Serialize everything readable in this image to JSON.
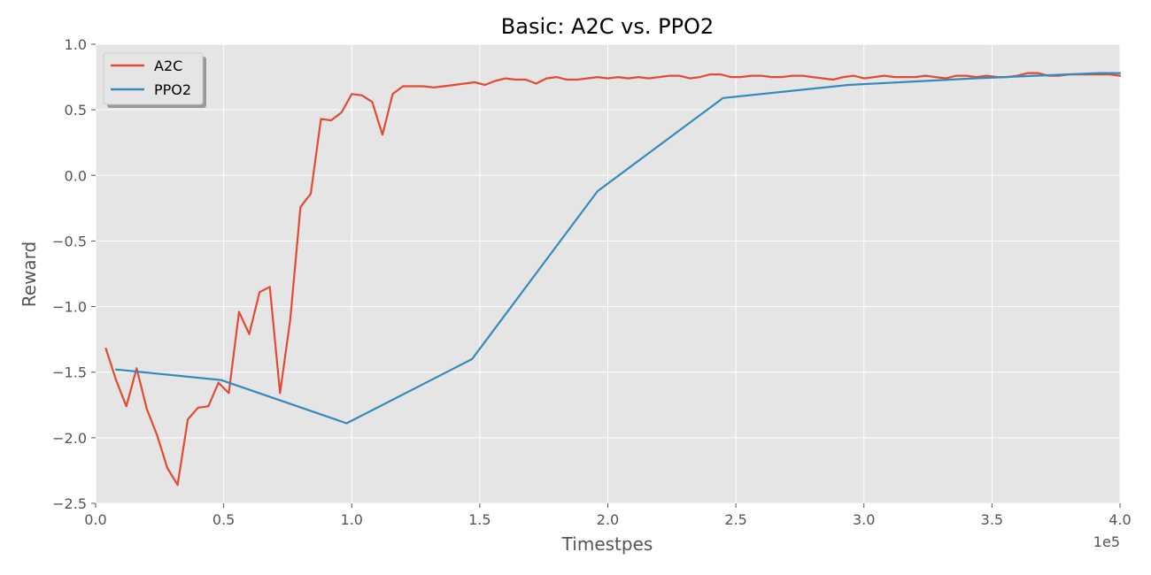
{
  "chart_data": {
    "type": "line",
    "title": "Basic: A2C vs. PPO2",
    "xlabel": "Timestpes",
    "ylabel": "Reward",
    "x_scale_label": "1e5",
    "xlim": [
      0,
      400000
    ],
    "ylim": [
      -2.5,
      1.0
    ],
    "x_ticks": [
      0,
      50000,
      100000,
      150000,
      200000,
      250000,
      300000,
      350000,
      400000
    ],
    "x_tick_labels": [
      "0.0",
      "0.5",
      "1.0",
      "1.5",
      "2.0",
      "2.5",
      "3.0",
      "3.5",
      "4.0"
    ],
    "y_ticks": [
      -2.5,
      -2.0,
      -1.5,
      -1.0,
      -0.5,
      0.0,
      0.5,
      1.0
    ],
    "y_tick_labels": [
      "−2.5",
      "−2.0",
      "−1.5",
      "−1.0",
      "−0.5",
      "0.0",
      "0.5",
      "1.0"
    ],
    "grid": true,
    "legend_position": "top-left",
    "background": "#e5e5e5",
    "series": [
      {
        "name": "A2C",
        "color": "#e24a33",
        "x": [
          4000,
          8000,
          12000,
          16000,
          20000,
          24000,
          28000,
          32000,
          36000,
          40000,
          44000,
          48000,
          52000,
          56000,
          60000,
          64000,
          68000,
          72000,
          76000,
          80000,
          84000,
          88000,
          92000,
          96000,
          100000,
          104000,
          108000,
          112000,
          116000,
          120000,
          124000,
          128000,
          132000,
          136000,
          140000,
          144000,
          148000,
          152000,
          156000,
          160000,
          164000,
          168000,
          172000,
          176000,
          180000,
          184000,
          188000,
          192000,
          196000,
          200000,
          204000,
          208000,
          212000,
          216000,
          220000,
          224000,
          228000,
          232000,
          236000,
          240000,
          244000,
          248000,
          252000,
          256000,
          260000,
          264000,
          268000,
          272000,
          276000,
          280000,
          284000,
          288000,
          292000,
          296000,
          300000,
          304000,
          308000,
          312000,
          316000,
          320000,
          324000,
          328000,
          332000,
          336000,
          340000,
          344000,
          348000,
          352000,
          356000,
          360000,
          364000,
          368000,
          372000,
          376000,
          380000,
          384000,
          388000,
          392000,
          396000,
          400000
        ],
        "y": [
          -1.32,
          -1.56,
          -1.76,
          -1.47,
          -1.78,
          -1.98,
          -2.23,
          -2.36,
          -1.86,
          -1.77,
          -1.76,
          -1.58,
          -1.66,
          -1.04,
          -1.21,
          -0.89,
          -0.85,
          -1.66,
          -1.1,
          -0.24,
          -0.14,
          0.43,
          0.42,
          0.48,
          0.62,
          0.61,
          0.56,
          0.31,
          0.62,
          0.68,
          0.68,
          0.68,
          0.67,
          0.68,
          0.69,
          0.7,
          0.71,
          0.69,
          0.72,
          0.74,
          0.73,
          0.73,
          0.7,
          0.74,
          0.75,
          0.73,
          0.73,
          0.74,
          0.75,
          0.74,
          0.75,
          0.74,
          0.75,
          0.74,
          0.75,
          0.76,
          0.76,
          0.74,
          0.75,
          0.77,
          0.77,
          0.75,
          0.75,
          0.76,
          0.76,
          0.75,
          0.75,
          0.76,
          0.76,
          0.75,
          0.74,
          0.73,
          0.75,
          0.76,
          0.74,
          0.75,
          0.76,
          0.75,
          0.75,
          0.75,
          0.76,
          0.75,
          0.74,
          0.76,
          0.76,
          0.75,
          0.76,
          0.75,
          0.75,
          0.76,
          0.78,
          0.78,
          0.76,
          0.76,
          0.77,
          0.77,
          0.77,
          0.77,
          0.77,
          0.76
        ]
      },
      {
        "name": "PPO2",
        "color": "#348abd",
        "x": [
          8000,
          49000,
          98000,
          147000,
          196000,
          245000,
          294000,
          343000,
          392000,
          400000
        ],
        "y": [
          -1.48,
          -1.56,
          -1.89,
          -1.4,
          -0.12,
          0.59,
          0.69,
          0.74,
          0.78,
          0.78
        ]
      }
    ]
  }
}
